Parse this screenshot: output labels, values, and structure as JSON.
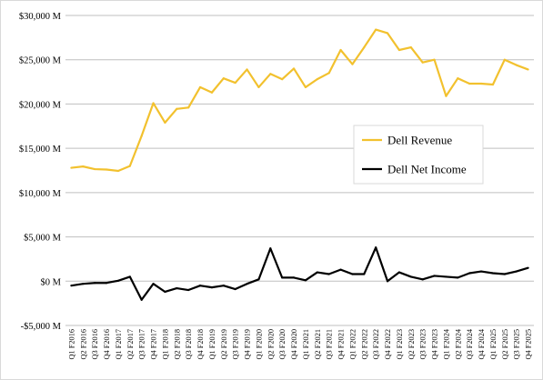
{
  "chart_data": {
    "type": "line",
    "title": "",
    "xlabel": "",
    "ylabel": "",
    "ylim": [
      -5000,
      30000
    ],
    "yticks": [
      -5000,
      0,
      5000,
      10000,
      15000,
      20000,
      25000,
      30000
    ],
    "ytick_labels": [
      "-$5,000 M",
      "$0 M",
      "$5,000 M",
      "$10,000 M",
      "$15,000 M",
      "$20,000 M",
      "$25,000 M",
      "$30,000 M"
    ],
    "grid": "horizontal",
    "legend_position": "right-center",
    "categories": [
      "Q1 F2016",
      "Q2 F2016",
      "Q3 F2016",
      "Q4 F2016",
      "Q1 F2017",
      "Q2 F2017",
      "Q3 F2017",
      "Q4 F2017",
      "Q1 F2018",
      "Q2 F2018",
      "Q3 F2018",
      "Q4 F2018",
      "Q1 F2019",
      "Q2 F2019",
      "Q3 F2019",
      "Q4 F2019",
      "Q1 F2020",
      "Q2 F2020",
      "Q3 F2020",
      "Q4 F2020",
      "Q1 F2021",
      "Q2 F2021",
      "Q3 F2021",
      "Q4 F2021",
      "Q1 F2022",
      "Q2 F2022",
      "Q3 F2022",
      "Q4 F2022",
      "Q1 F2023",
      "Q2 F2023",
      "Q3 F2023",
      "Q4 F2023",
      "Q1 F2024",
      "Q2 F2024",
      "Q3 F2024",
      "Q4 F2024",
      "Q1 F2025",
      "Q2 F2025",
      "Q3 F2025",
      "Q4 F2025"
    ],
    "series": [
      {
        "name": "Dell Revenue",
        "color": "#f2c12e",
        "values": [
          12800,
          12950,
          12650,
          12600,
          12450,
          13000,
          16400,
          20100,
          17900,
          19450,
          19600,
          21900,
          21300,
          22900,
          22400,
          23900,
          21900,
          23400,
          22800,
          24000,
          21900,
          22800,
          23500,
          26100,
          24500,
          26400,
          28400,
          28000,
          26100,
          26400,
          24700,
          25000,
          20900,
          22900,
          22300,
          22300,
          22200,
          25000,
          24400,
          23900
        ]
      },
      {
        "name": "Dell Net Income",
        "color": "#000000",
        "values": [
          -500,
          -300,
          -200,
          -200,
          50,
          500,
          -2100,
          -300,
          -1200,
          -800,
          -1000,
          -500,
          -700,
          -500,
          -900,
          -300,
          200,
          3700,
          400,
          400,
          100,
          1000,
          800,
          1300,
          800,
          800,
          3800,
          0,
          1000,
          500,
          200,
          600,
          500,
          400,
          900,
          1100,
          900,
          800,
          1100,
          1500
        ]
      }
    ]
  }
}
